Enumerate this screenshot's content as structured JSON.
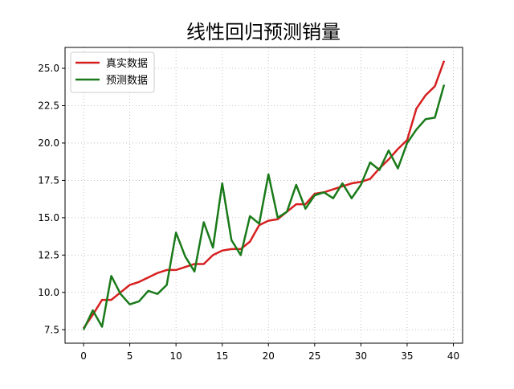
{
  "chart_data": {
    "type": "line",
    "title": "线性回归预测销量",
    "xlabel": "",
    "ylabel": "",
    "xlim": [
      -2,
      41
    ],
    "ylim": [
      6.6,
      26.4
    ],
    "x_ticks": [
      0,
      5,
      10,
      15,
      20,
      25,
      30,
      35,
      40
    ],
    "y_ticks": [
      7.5,
      10.0,
      12.5,
      15.0,
      17.5,
      20.0,
      22.5,
      25.0
    ],
    "y_tick_labels": [
      "7.5",
      "10.0",
      "12.5",
      "15.0",
      "17.5",
      "20.0",
      "22.5",
      "25.0"
    ],
    "grid": true,
    "legend_position": "top-left",
    "x": [
      0,
      1,
      2,
      3,
      4,
      5,
      6,
      7,
      8,
      9,
      10,
      11,
      12,
      13,
      14,
      15,
      16,
      17,
      18,
      19,
      20,
      21,
      22,
      23,
      24,
      25,
      26,
      27,
      28,
      29,
      30,
      31,
      32,
      33,
      34,
      35,
      36,
      37,
      38,
      39
    ],
    "series": [
      {
        "name": "真实数据",
        "color": "#d62020",
        "values": [
          7.6,
          8.5,
          9.5,
          9.5,
          10.0,
          10.5,
          10.7,
          11.0,
          11.3,
          11.5,
          11.5,
          11.7,
          11.9,
          11.9,
          12.5,
          12.8,
          12.9,
          12.9,
          13.4,
          14.5,
          14.8,
          14.9,
          15.4,
          15.9,
          15.9,
          16.6,
          16.7,
          16.9,
          17.1,
          17.3,
          17.4,
          17.6,
          18.3,
          18.9,
          19.6,
          20.2,
          22.3,
          23.2,
          23.8,
          25.5
        ]
      },
      {
        "name": "预测数据",
        "color": "#1a7a1a",
        "values": [
          7.5,
          8.8,
          7.7,
          11.1,
          9.9,
          9.2,
          9.4,
          10.1,
          9.9,
          10.5,
          14.0,
          12.4,
          11.4,
          14.7,
          13.0,
          17.3,
          13.5,
          12.5,
          15.1,
          14.6,
          17.9,
          15.0,
          15.4,
          17.2,
          15.6,
          16.5,
          16.7,
          16.3,
          17.3,
          16.3,
          17.2,
          18.7,
          18.2,
          19.5,
          18.3,
          20.0,
          20.9,
          21.6,
          21.7,
          23.9
        ]
      }
    ]
  }
}
